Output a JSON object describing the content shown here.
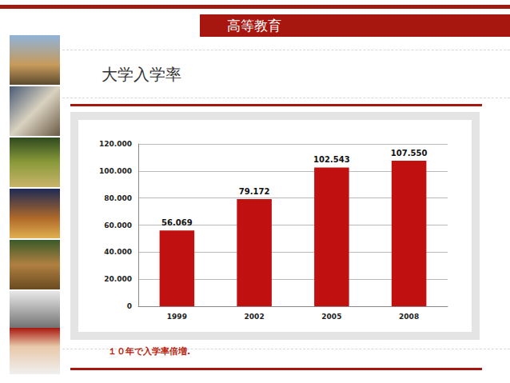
{
  "header": "高等教育",
  "chart_data": {
    "type": "bar",
    "title": "大学入学率",
    "categories": [
      "1999",
      "2002",
      "2005",
      "2008"
    ],
    "values": [
      56069,
      79172,
      102543,
      107550
    ],
    "value_labels": [
      "56.069",
      "79.172",
      "102.543",
      "107.550"
    ],
    "color": "#c0100f",
    "ylim": [
      0,
      120000
    ],
    "yticks": [
      0,
      {
        "value": 20000,
        "label": "20.000"
      },
      {
        "value": 40000,
        "label": "40.000"
      },
      {
        "value": 60000,
        "label": "60.000"
      },
      {
        "value": 80000,
        "label": "80.000"
      },
      {
        "value": 100000,
        "label": "100.000"
      },
      {
        "value": 120000,
        "label": "120.000"
      }
    ],
    "grid": true,
    "data_labels": true,
    "annotations": [
      "１０年で入学率倍増."
    ]
  }
}
